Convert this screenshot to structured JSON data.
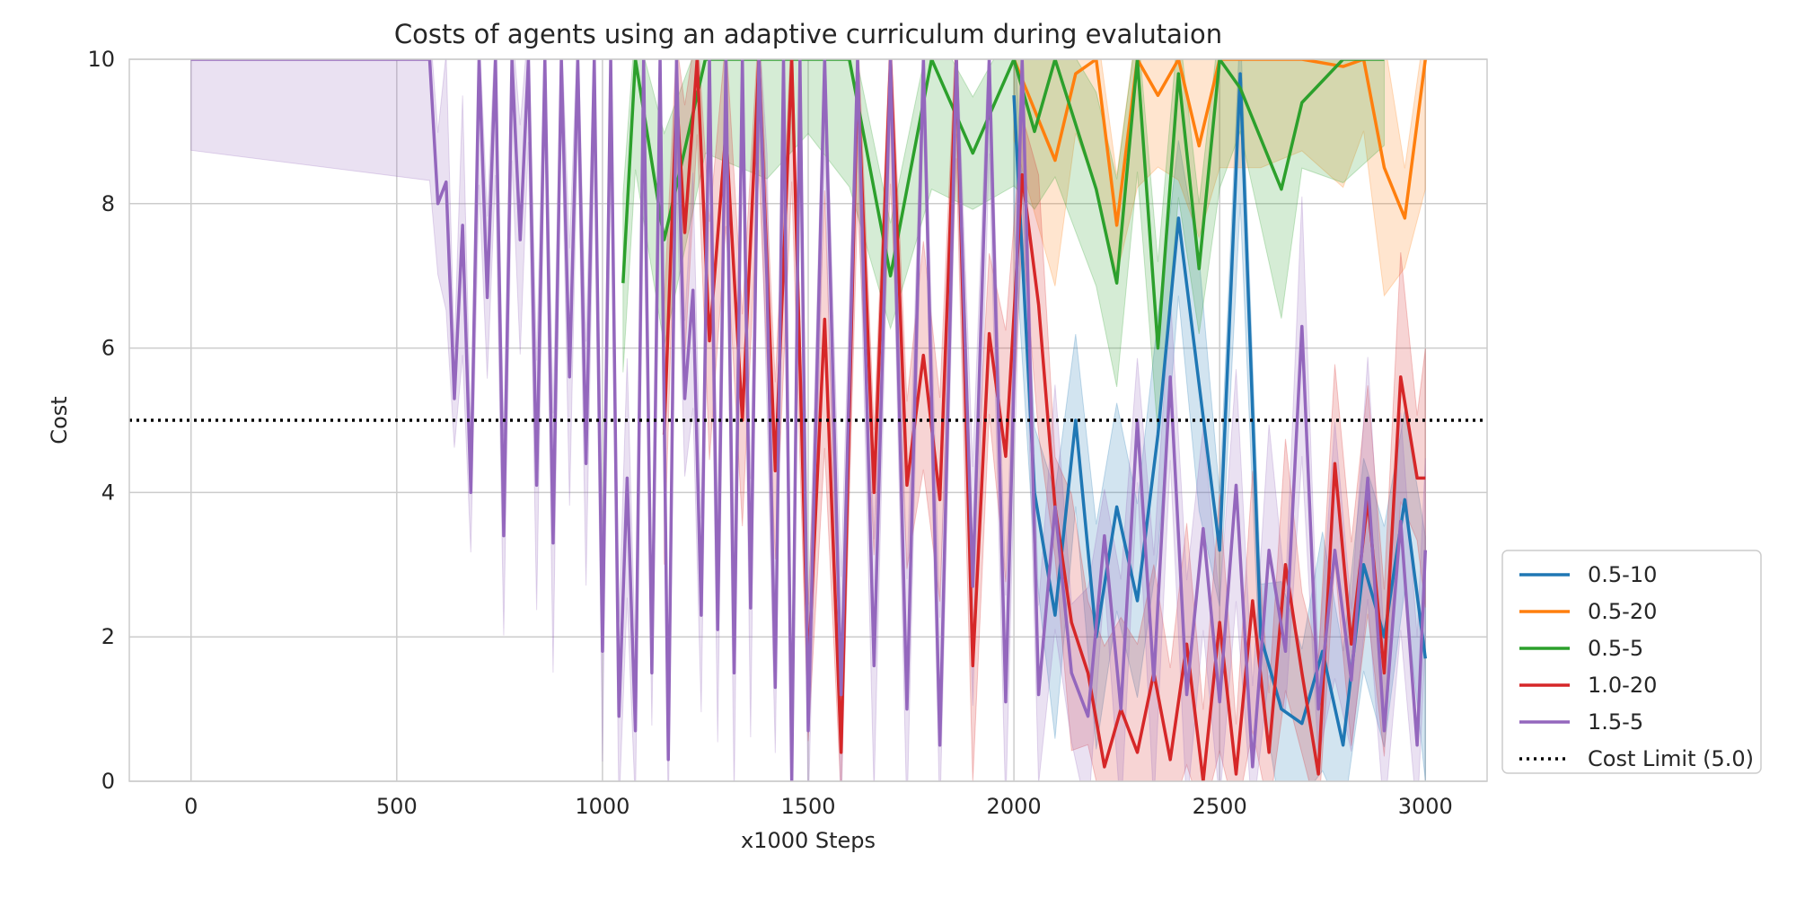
{
  "chart_data": {
    "type": "line",
    "title": "Costs of agents using an adaptive curriculum during evalutaion",
    "xlabel": "x1000 Steps",
    "ylabel": "Cost",
    "xlim": [
      -150,
      3150
    ],
    "ylim": [
      0,
      10
    ],
    "xticks": [
      0,
      500,
      1000,
      1500,
      2000,
      2500,
      3000
    ],
    "yticks": [
      0,
      2,
      4,
      6,
      8,
      10
    ],
    "grid": true,
    "legend_position": "lower-right outside",
    "cost_limit": {
      "label": "Cost Limit (5.0)",
      "value": 5.0,
      "style": "dotted",
      "color": "#000000"
    },
    "series": [
      {
        "name": "0.5-10",
        "color": "#1f77b4",
        "x": [
          2000,
          2050,
          2100,
          2150,
          2200,
          2250,
          2300,
          2350,
          2400,
          2450,
          2500,
          2550,
          2600,
          2650,
          2700,
          2750,
          2800,
          2850,
          2900,
          2950,
          3000
        ],
        "y": [
          9.5,
          4.0,
          2.3,
          5.0,
          2.0,
          3.8,
          2.5,
          4.8,
          7.8,
          5.5,
          3.2,
          9.8,
          2.0,
          1.0,
          0.8,
          1.8,
          0.5,
          3.0,
          2.0,
          3.9,
          1.7
        ]
      },
      {
        "name": "0.5-20",
        "color": "#ff7f0e",
        "x": [
          2000,
          2100,
          2150,
          2200,
          2250,
          2300,
          2350,
          2400,
          2450,
          2500,
          2600,
          2700,
          2800,
          2850,
          2900,
          2950,
          3000
        ],
        "y": [
          10,
          8.6,
          9.8,
          10,
          7.7,
          10,
          9.5,
          10,
          8.8,
          10,
          10,
          10,
          9.9,
          10,
          8.5,
          7.8,
          10
        ]
      },
      {
        "name": "0.5-5",
        "color": "#2ca02c",
        "x": [
          1050,
          1080,
          1150,
          1250,
          1400,
          1500,
          1600,
          1700,
          1800,
          1900,
          2000,
          2050,
          2100,
          2200,
          2250,
          2300,
          2350,
          2400,
          2450,
          2500,
          2550,
          2650,
          2700,
          2800,
          2900
        ],
        "y": [
          6.9,
          10,
          7.5,
          10,
          10,
          10,
          10,
          7.0,
          10,
          8.7,
          10,
          9.0,
          10,
          8.2,
          6.9,
          10,
          6.0,
          9.8,
          7.1,
          10,
          9.6,
          8.2,
          9.4,
          10,
          10
        ]
      },
      {
        "name": "1.0-20",
        "color": "#d62728",
        "x": [
          1150,
          1180,
          1200,
          1230,
          1260,
          1300,
          1340,
          1380,
          1420,
          1460,
          1500,
          1540,
          1580,
          1620,
          1660,
          1700,
          1740,
          1780,
          1820,
          1860,
          1900,
          1940,
          1980,
          2020,
          2060,
          2100,
          2140,
          2180,
          2220,
          2260,
          2300,
          2340,
          2380,
          2420,
          2460,
          2500,
          2540,
          2580,
          2620,
          2660,
          2700,
          2740,
          2780,
          2820,
          2860,
          2900,
          2940,
          2980,
          3000
        ],
        "y": [
          4.8,
          9.5,
          7.6,
          10,
          6.1,
          9.0,
          5.0,
          10,
          4.3,
          10,
          1.5,
          6.4,
          0.4,
          9.8,
          4.0,
          10,
          4.1,
          5.9,
          3.9,
          10,
          1.6,
          6.2,
          4.5,
          8.4,
          6.6,
          3.8,
          2.2,
          1.5,
          0.2,
          1.0,
          0.4,
          1.5,
          0.3,
          1.9,
          0.0,
          2.2,
          0.1,
          2.5,
          0.4,
          3.0,
          1.5,
          0.1,
          4.4,
          1.9,
          3.9,
          1.5,
          5.6,
          4.2,
          4.2
        ]
      },
      {
        "name": "1.5-5",
        "color": "#9467bd",
        "x": [
          0,
          580,
          600,
          620,
          640,
          660,
          680,
          700,
          720,
          740,
          760,
          780,
          800,
          820,
          840,
          860,
          880,
          900,
          920,
          940,
          960,
          980,
          1000,
          1020,
          1040,
          1060,
          1080,
          1100,
          1120,
          1140,
          1160,
          1180,
          1200,
          1220,
          1240,
          1260,
          1280,
          1300,
          1320,
          1340,
          1360,
          1380,
          1400,
          1420,
          1440,
          1460,
          1480,
          1500,
          1540,
          1580,
          1620,
          1660,
          1700,
          1740,
          1780,
          1820,
          1860,
          1900,
          1940,
          1980,
          2020,
          2060,
          2100,
          2140,
          2180,
          2220,
          2260,
          2300,
          2340,
          2380,
          2420,
          2460,
          2500,
          2540,
          2580,
          2620,
          2660,
          2700,
          2740,
          2780,
          2820,
          2860,
          2900,
          2940,
          2980,
          3000
        ],
        "y": [
          10,
          10,
          8.0,
          8.3,
          5.3,
          7.7,
          4.0,
          10,
          6.7,
          10,
          3.4,
          10,
          7.5,
          10,
          4.1,
          10,
          3.3,
          10,
          5.6,
          10,
          4.4,
          10,
          1.8,
          10,
          0.9,
          4.2,
          0.7,
          10,
          1.5,
          10,
          0.3,
          10,
          5.3,
          6.8,
          2.3,
          10,
          2.1,
          10,
          1.5,
          10,
          2.4,
          10,
          6.9,
          1.3,
          10,
          0.0,
          10,
          0.7,
          10,
          1.2,
          10,
          1.6,
          10,
          1.0,
          10,
          0.5,
          10,
          2.7,
          10,
          1.1,
          10,
          1.2,
          3.8,
          1.5,
          0.9,
          3.4,
          1.0,
          5.0,
          1.4,
          5.6,
          1.2,
          3.5,
          1.1,
          4.1,
          0.2,
          3.2,
          1.8,
          6.3,
          1.0,
          3.2,
          1.4,
          4.2,
          0.7,
          3.6,
          0.5,
          3.2
        ]
      }
    ]
  }
}
